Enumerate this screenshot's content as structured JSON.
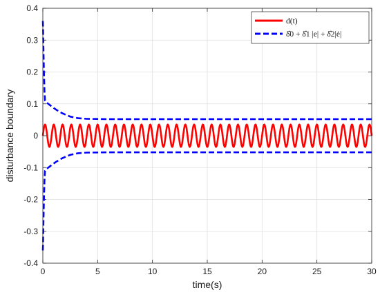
{
  "chart_data": {
    "type": "line",
    "xlabel": "time(s)",
    "ylabel": "disturbance boundary",
    "xlim": [
      0,
      30
    ],
    "ylim": [
      -0.4,
      0.4
    ],
    "grid": true,
    "legend_position": "top-right",
    "x_ticks": [
      0,
      5,
      10,
      15,
      20,
      25,
      30
    ],
    "x_tick_labels": [
      "0",
      "5",
      "10",
      "15",
      "20",
      "25",
      "30"
    ],
    "y_ticks": [
      -0.4,
      -0.3,
      -0.2,
      -0.1,
      0,
      0.1,
      0.2,
      0.3,
      0.4
    ],
    "y_tick_labels": [
      "-0.4",
      "-0.3",
      "-0.2",
      "-0.1",
      "0",
      "0.1",
      "0.2",
      "0.3",
      "0.4"
    ],
    "series": [
      {
        "name": "d(t)",
        "color": "#ff0000",
        "style": "solid",
        "amplitude": 0.035,
        "period": 0.8,
        "x": [
          0,
          30
        ]
      },
      {
        "name": "δ̂0 + δ̂1 |e| + δ̂2|ė|",
        "color": "#0000ff",
        "style": "dashed",
        "symmetric": true,
        "x": [
          0,
          0.02,
          0.05,
          0.1,
          0.15,
          0.2,
          0.3,
          0.5,
          0.8,
          1.2,
          1.8,
          2.5,
          3.2,
          4,
          6,
          10,
          20,
          30
        ],
        "upper": [
          0.36,
          0.34,
          0.28,
          0.2,
          0.14,
          0.11,
          0.105,
          0.1,
          0.092,
          0.082,
          0.07,
          0.06,
          0.055,
          0.053,
          0.052,
          0.052,
          0.052,
          0.052
        ],
        "lower": [
          -0.36,
          -0.34,
          -0.28,
          -0.2,
          -0.14,
          -0.11,
          -0.105,
          -0.1,
          -0.092,
          -0.082,
          -0.07,
          -0.06,
          -0.055,
          -0.053,
          -0.052,
          -0.052,
          -0.052,
          -0.052
        ]
      }
    ]
  },
  "legend": {
    "entries": [
      "d(t)",
      "δ̂0 + δ̂1 |e| + δ̂2|ė|"
    ]
  }
}
